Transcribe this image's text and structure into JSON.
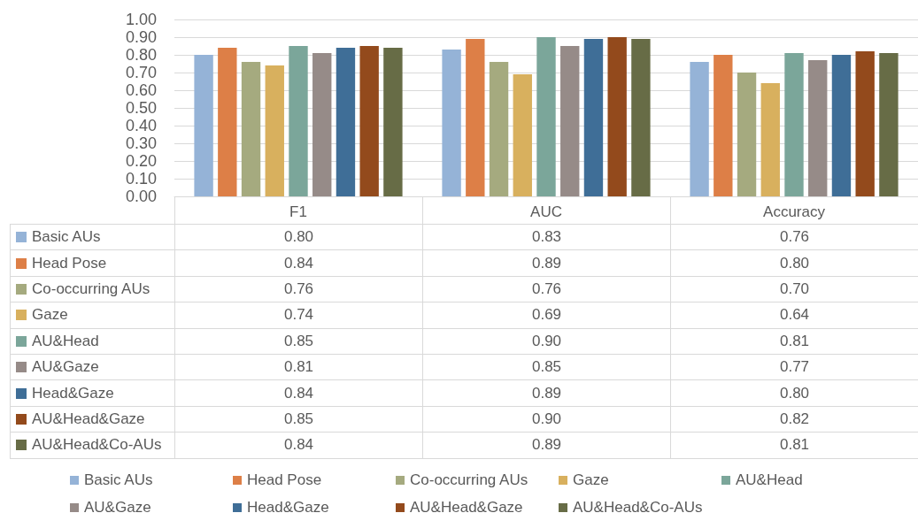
{
  "chart_data": {
    "type": "bar",
    "categories": [
      "F1",
      "AUC",
      "Accuracy"
    ],
    "series": [
      {
        "name": "Basic AUs",
        "color": "#95b3d7",
        "values": [
          0.8,
          0.83,
          0.76
        ],
        "value_labels": [
          "0.80",
          "0.83",
          "0.76"
        ]
      },
      {
        "name": "Head Pose",
        "color": "#dd7f47",
        "values": [
          0.84,
          0.89,
          0.8
        ],
        "value_labels": [
          "0.84",
          "0.89",
          "0.80"
        ]
      },
      {
        "name": "Co-occurring AUs",
        "color": "#a5aa7f",
        "values": [
          0.76,
          0.76,
          0.7
        ],
        "value_labels": [
          "0.76",
          "0.76",
          "0.70"
        ]
      },
      {
        "name": "Gaze",
        "color": "#d8b05e",
        "values": [
          0.74,
          0.69,
          0.64
        ],
        "value_labels": [
          "0.74",
          "0.69",
          "0.64"
        ]
      },
      {
        "name": "AU&Head",
        "color": "#7ba69a",
        "values": [
          0.85,
          0.9,
          0.81
        ],
        "value_labels": [
          "0.85",
          "0.90",
          "0.81"
        ]
      },
      {
        "name": "AU&Gaze",
        "color": "#968b88",
        "values": [
          0.81,
          0.85,
          0.77
        ],
        "value_labels": [
          "0.81",
          "0.85",
          "0.77"
        ]
      },
      {
        "name": "Head&Gaze",
        "color": "#3f6e97",
        "values": [
          0.84,
          0.89,
          0.8
        ],
        "value_labels": [
          "0.84",
          "0.89",
          "0.80"
        ]
      },
      {
        "name": "AU&Head&Gaze",
        "color": "#934a1c",
        "values": [
          0.85,
          0.9,
          0.82
        ],
        "value_labels": [
          "0.85",
          "0.90",
          "0.82"
        ]
      },
      {
        "name": "AU&Head&Co-AUs",
        "color": "#676c46",
        "values": [
          0.84,
          0.89,
          0.81
        ],
        "value_labels": [
          "0.84",
          "0.89",
          "0.81"
        ]
      }
    ],
    "ylim": [
      0,
      1
    ],
    "yticks": [
      {
        "value": 0,
        "label": "0.00"
      },
      {
        "value": 0.1,
        "label": "0.10"
      },
      {
        "value": 0.2,
        "label": "0.20"
      },
      {
        "value": 0.3,
        "label": "0.30"
      },
      {
        "value": 0.4,
        "label": "0.40"
      },
      {
        "value": 0.5,
        "label": "0.50"
      },
      {
        "value": 0.6,
        "label": "0.60"
      },
      {
        "value": 0.7,
        "label": "0.70"
      },
      {
        "value": 0.8,
        "label": "0.80"
      },
      {
        "value": 0.9,
        "label": "0.90"
      },
      {
        "value": 1,
        "label": "1.00"
      }
    ],
    "grid": "y",
    "legend": "bottom"
  }
}
